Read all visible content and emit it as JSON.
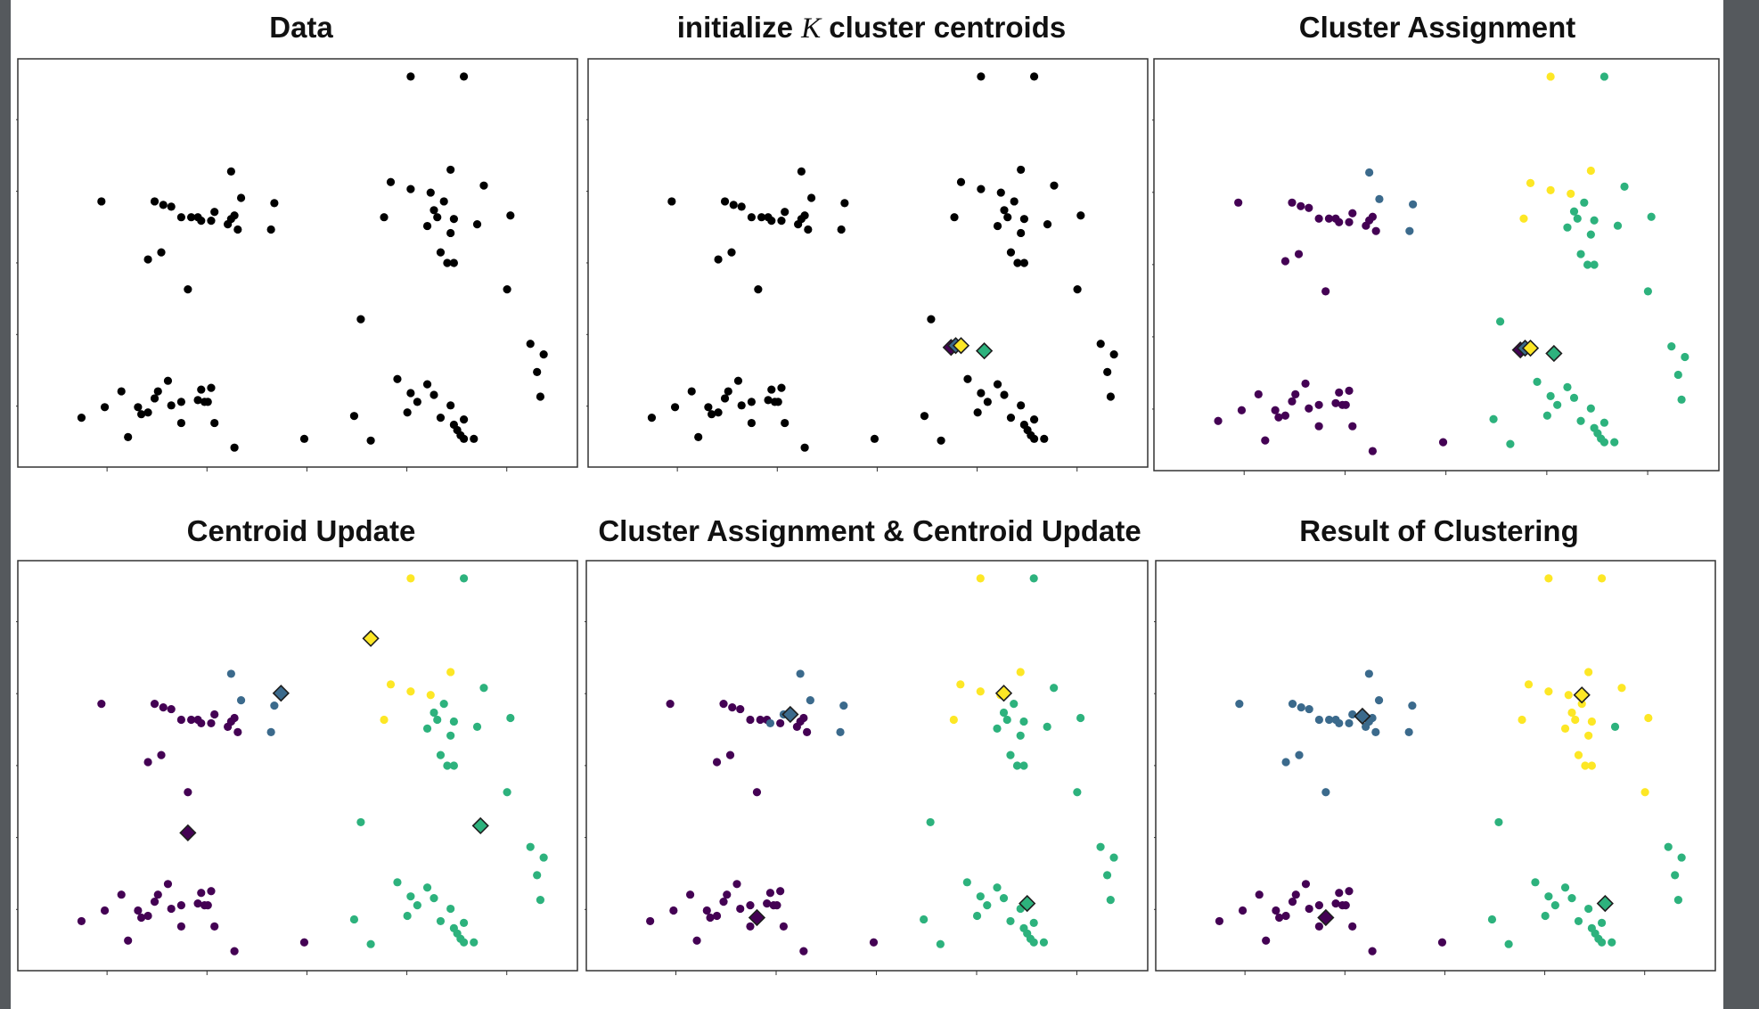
{
  "colors": {
    "black": "#000000",
    "purple": "#440154",
    "blue": "#3b6a8c",
    "teal": "#2db27d",
    "yellow": "#fde725",
    "diamond_stroke": "#1e1e1e"
  },
  "clusters": {
    "0": "purple",
    "1": "blue",
    "2": "teal",
    "3": "yellow"
  },
  "shared_axes": {
    "xlim": [
      0,
      10
    ],
    "ylim": [
      0,
      10
    ]
  },
  "points": [
    {
      "x": 0.85,
      "y": 9.35
    },
    {
      "x": 1.65,
      "y": 9.35
    },
    {
      "x": 1.78,
      "y": 9.25
    },
    {
      "x": 1.9,
      "y": 9.2
    },
    {
      "x": 2.05,
      "y": 8.9
    },
    {
      "x": 2.2,
      "y": 8.9
    },
    {
      "x": 2.3,
      "y": 8.9
    },
    {
      "x": 2.35,
      "y": 8.8
    },
    {
      "x": 2.55,
      "y": 9.05
    },
    {
      "x": 2.75,
      "y": 8.7
    },
    {
      "x": 2.85,
      "y": 8.95
    },
    {
      "x": 2.8,
      "y": 8.85
    },
    {
      "x": 2.5,
      "y": 8.8
    },
    {
      "x": 2.9,
      "y": 8.55
    },
    {
      "x": 3.45,
      "y": 9.3
    },
    {
      "x": 3.4,
      "y": 8.55
    },
    {
      "x": 1.75,
      "y": 7.9
    },
    {
      "x": 1.55,
      "y": 7.7
    },
    {
      "x": 2.15,
      "y": 6.85
    },
    {
      "x": 2.8,
      "y": 10.2
    },
    {
      "x": 2.95,
      "y": 9.45
    },
    {
      "x": 5.5,
      "y": 12.9
    },
    {
      "x": 6.3,
      "y": 12.9
    },
    {
      "x": 6.1,
      "y": 10.25
    },
    {
      "x": 5.2,
      "y": 9.9
    },
    {
      "x": 5.5,
      "y": 9.7
    },
    {
      "x": 5.8,
      "y": 9.6
    },
    {
      "x": 6.6,
      "y": 9.8
    },
    {
      "x": 6.0,
      "y": 9.35
    },
    {
      "x": 5.1,
      "y": 8.9
    },
    {
      "x": 5.85,
      "y": 9.1
    },
    {
      "x": 5.9,
      "y": 8.9
    },
    {
      "x": 5.75,
      "y": 8.65
    },
    {
      "x": 6.15,
      "y": 8.85
    },
    {
      "x": 6.5,
      "y": 8.7
    },
    {
      "x": 6.1,
      "y": 8.45
    },
    {
      "x": 7.0,
      "y": 8.95
    },
    {
      "x": 5.95,
      "y": 7.9
    },
    {
      "x": 6.05,
      "y": 7.6
    },
    {
      "x": 6.15,
      "y": 7.6
    },
    {
      "x": 6.95,
      "y": 6.85
    },
    {
      "x": 4.75,
      "y": 6.0
    },
    {
      "x": 7.3,
      "y": 5.3
    },
    {
      "x": 7.5,
      "y": 5.0
    },
    {
      "x": 7.4,
      "y": 4.5
    },
    {
      "x": 7.45,
      "y": 3.8
    },
    {
      "x": 5.3,
      "y": 4.3
    },
    {
      "x": 5.75,
      "y": 4.15
    },
    {
      "x": 5.5,
      "y": 3.9
    },
    {
      "x": 5.85,
      "y": 3.85
    },
    {
      "x": 5.6,
      "y": 3.65
    },
    {
      "x": 6.1,
      "y": 3.55
    },
    {
      "x": 5.45,
      "y": 3.35
    },
    {
      "x": 5.95,
      "y": 3.2
    },
    {
      "x": 6.3,
      "y": 3.15
    },
    {
      "x": 6.15,
      "y": 3.0
    },
    {
      "x": 6.2,
      "y": 2.85
    },
    {
      "x": 6.25,
      "y": 2.7
    },
    {
      "x": 6.3,
      "y": 2.6
    },
    {
      "x": 6.45,
      "y": 2.6
    },
    {
      "x": 4.65,
      "y": 3.25
    },
    {
      "x": 4.9,
      "y": 2.55
    },
    {
      "x": 3.9,
      "y": 2.6
    },
    {
      "x": 0.55,
      "y": 3.2
    },
    {
      "x": 0.9,
      "y": 3.5
    },
    {
      "x": 1.15,
      "y": 3.95
    },
    {
      "x": 1.4,
      "y": 3.5
    },
    {
      "x": 1.45,
      "y": 3.3
    },
    {
      "x": 1.55,
      "y": 3.35
    },
    {
      "x": 1.65,
      "y": 3.75
    },
    {
      "x": 1.7,
      "y": 3.95
    },
    {
      "x": 1.85,
      "y": 4.25
    },
    {
      "x": 1.9,
      "y": 3.55
    },
    {
      "x": 2.05,
      "y": 3.65
    },
    {
      "x": 2.05,
      "y": 3.05
    },
    {
      "x": 2.3,
      "y": 3.7
    },
    {
      "x": 2.4,
      "y": 3.65
    },
    {
      "x": 2.35,
      "y": 4.0
    },
    {
      "x": 2.45,
      "y": 3.65
    },
    {
      "x": 2.5,
      "y": 4.05
    },
    {
      "x": 2.55,
      "y": 3.05
    },
    {
      "x": 1.25,
      "y": 2.65
    },
    {
      "x": 2.85,
      "y": 2.35
    }
  ],
  "panels": [
    {
      "title": "Data",
      "title_parts": []
    },
    {
      "title": "initialize  cluster centroids",
      "title_parts": [
        "initialize ",
        "K",
        " cluster centroids"
      ]
    },
    {
      "title": "Cluster Assignment",
      "title_parts": []
    },
    {
      "title": "Centroid Update",
      "title_parts": []
    },
    {
      "title": "Cluster Assignment  & Centroid Update",
      "title_parts": []
    },
    {
      "title": "Result of Clustering",
      "title_parts": []
    }
  ],
  "chart_data": [
    {
      "type": "scatter",
      "title": "Data",
      "xlim": [
        0,
        10
      ],
      "ylim": [
        0,
        10
      ],
      "points_color": "black",
      "assignments": [],
      "centroids": []
    },
    {
      "type": "scatter",
      "title": "initialize K cluster centroids",
      "xlim": [
        0,
        10
      ],
      "ylim": [
        0,
        10
      ],
      "points_color": "black",
      "assignments": [],
      "centroids": [
        {
          "x": 5.05,
          "y": 5.2,
          "cluster": 0
        },
        {
          "x": 5.12,
          "y": 5.25,
          "cluster": 1
        },
        {
          "x": 5.2,
          "y": 5.25,
          "cluster": 3
        },
        {
          "x": 5.55,
          "y": 5.1,
          "cluster": 2
        }
      ]
    },
    {
      "type": "scatter",
      "title": "Cluster Assignment",
      "xlim": [
        0,
        10
      ],
      "ylim": [
        0,
        10
      ],
      "assignments": [
        0,
        0,
        0,
        0,
        0,
        0,
        0,
        0,
        0,
        0,
        0,
        0,
        0,
        0,
        1,
        1,
        0,
        0,
        0,
        1,
        1,
        3,
        2,
        3,
        3,
        3,
        3,
        2,
        2,
        3,
        2,
        2,
        2,
        2,
        2,
        2,
        2,
        2,
        2,
        2,
        2,
        2,
        2,
        2,
        2,
        2,
        2,
        2,
        2,
        2,
        2,
        2,
        2,
        2,
        2,
        2,
        2,
        2,
        2,
        2,
        2,
        2,
        0,
        0,
        0,
        0,
        0,
        0,
        0,
        0,
        0,
        0,
        0,
        0,
        0,
        0,
        0,
        0,
        0,
        0,
        0,
        0,
        0,
        0
      ],
      "centroids": [
        {
          "x": 5.05,
          "y": 5.2,
          "cluster": 0
        },
        {
          "x": 5.12,
          "y": 5.25,
          "cluster": 1
        },
        {
          "x": 5.2,
          "y": 5.25,
          "cluster": 3
        },
        {
          "x": 5.55,
          "y": 5.1,
          "cluster": 2
        }
      ]
    },
    {
      "type": "scatter",
      "title": "Centroid Update",
      "xlim": [
        0,
        10
      ],
      "ylim": [
        0,
        10
      ],
      "assignments": [
        0,
        0,
        0,
        0,
        0,
        0,
        0,
        0,
        0,
        0,
        0,
        0,
        0,
        0,
        1,
        1,
        0,
        0,
        0,
        1,
        1,
        3,
        2,
        3,
        3,
        3,
        3,
        2,
        2,
        3,
        2,
        2,
        2,
        2,
        2,
        2,
        2,
        2,
        2,
        2,
        2,
        2,
        2,
        2,
        2,
        2,
        2,
        2,
        2,
        2,
        2,
        2,
        2,
        2,
        2,
        2,
        2,
        2,
        2,
        2,
        2,
        2,
        0,
        0,
        0,
        0,
        0,
        0,
        0,
        0,
        0,
        0,
        0,
        0,
        0,
        0,
        0,
        0,
        0,
        0,
        0,
        0,
        0,
        0
      ],
      "centroids": [
        {
          "x": 2.15,
          "y": 5.7,
          "cluster": 0
        },
        {
          "x": 3.55,
          "y": 9.65,
          "cluster": 1
        },
        {
          "x": 4.9,
          "y": 11.2,
          "cluster": 3
        },
        {
          "x": 6.55,
          "y": 5.9,
          "cluster": 2
        }
      ]
    },
    {
      "type": "scatter",
      "title": "Cluster Assignment  & Centroid Update",
      "xlim": [
        0,
        10
      ],
      "ylim": [
        0,
        10
      ],
      "assignments": [
        0,
        0,
        0,
        0,
        0,
        0,
        0,
        1,
        1,
        0,
        0,
        0,
        0,
        0,
        1,
        1,
        0,
        0,
        0,
        1,
        1,
        3,
        2,
        3,
        3,
        3,
        3,
        2,
        2,
        3,
        2,
        2,
        2,
        2,
        2,
        2,
        2,
        2,
        2,
        2,
        2,
        2,
        2,
        2,
        2,
        2,
        2,
        2,
        2,
        2,
        2,
        2,
        2,
        2,
        2,
        2,
        2,
        2,
        2,
        2,
        2,
        2,
        0,
        0,
        0,
        0,
        0,
        0,
        0,
        0,
        0,
        0,
        0,
        0,
        0,
        0,
        0,
        0,
        0,
        0,
        0,
        0,
        0,
        0
      ],
      "centroids": [
        {
          "x": 2.15,
          "y": 3.3,
          "cluster": 0
        },
        {
          "x": 2.65,
          "y": 9.05,
          "cluster": 1
        },
        {
          "x": 5.85,
          "y": 9.65,
          "cluster": 3
        },
        {
          "x": 6.2,
          "y": 3.7,
          "cluster": 2
        }
      ]
    },
    {
      "type": "scatter",
      "title": "Result of Clustering",
      "xlim": [
        0,
        10
      ],
      "ylim": [
        0,
        10
      ],
      "assignments": [
        1,
        1,
        1,
        1,
        1,
        1,
        1,
        1,
        1,
        1,
        1,
        1,
        1,
        1,
        1,
        1,
        1,
        1,
        1,
        1,
        1,
        3,
        3,
        3,
        3,
        3,
        3,
        3,
        3,
        3,
        3,
        3,
        3,
        3,
        2,
        3,
        3,
        3,
        3,
        3,
        3,
        2,
        2,
        2,
        2,
        2,
        2,
        2,
        2,
        2,
        2,
        2,
        2,
        2,
        2,
        2,
        2,
        2,
        2,
        2,
        2,
        2,
        0,
        0,
        0,
        0,
        0,
        0,
        0,
        0,
        0,
        0,
        0,
        0,
        0,
        0,
        0,
        0,
        0,
        0,
        0,
        0,
        0,
        0
      ],
      "centroids": [
        {
          "x": 2.15,
          "y": 3.3,
          "cluster": 0
        },
        {
          "x": 2.7,
          "y": 9.0,
          "cluster": 1
        },
        {
          "x": 6.0,
          "y": 9.6,
          "cluster": 3
        },
        {
          "x": 6.35,
          "y": 3.7,
          "cluster": 2
        }
      ]
    }
  ]
}
